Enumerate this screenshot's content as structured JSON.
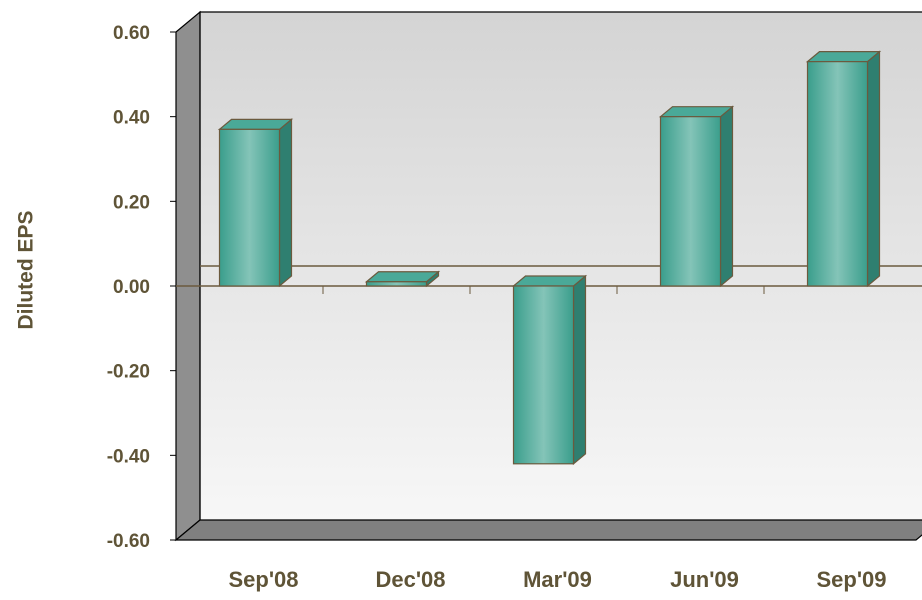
{
  "chart_data": {
    "type": "bar",
    "style": "3d-column",
    "title": "",
    "xlabel": "",
    "ylabel": "Diluted EPS",
    "categories": [
      "Sep'08",
      "Dec'08",
      "Mar'09",
      "Jun'09",
      "Sep'09"
    ],
    "values": [
      0.37,
      0.01,
      -0.42,
      0.4,
      0.53
    ],
    "ylim": [
      -0.6,
      0.6
    ],
    "yticks": [
      "0.60",
      "0.40",
      "0.20",
      "0.00",
      "-0.20",
      "-0.40",
      "-0.60"
    ],
    "grid": false,
    "legend": "none",
    "colors": {
      "bar_face": "#3fa291",
      "bar_face_light": "#7fc1b5",
      "bar_side": "#2f7f70",
      "bar_top": "#4aa998",
      "bar_stroke": "#6b5a3e",
      "axis_text": "#5f5437",
      "wall_top": "#d4d4d4",
      "wall_bottom": "#f6f6f6",
      "side_wall": "#8f8f8f",
      "floor": "#808080"
    }
  }
}
